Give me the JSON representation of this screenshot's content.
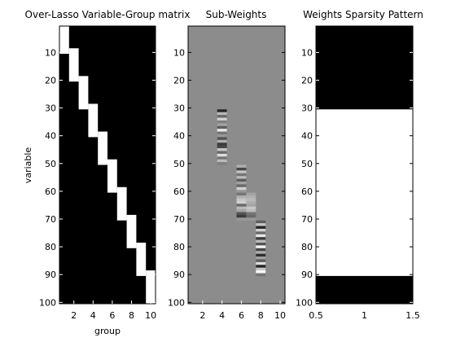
{
  "chart_data": [
    {
      "type": "heatmap",
      "title": "Over-Lasso Variable-Group matrix",
      "xlabel": "group",
      "ylabel": "variable",
      "xlim": [
        0.5,
        10.5
      ],
      "ylim": [
        100.5,
        0.5
      ],
      "x_ticks": [
        "2",
        "4",
        "6",
        "8",
        "10"
      ],
      "y_ticks": [
        "10",
        "20",
        "30",
        "40",
        "50",
        "60",
        "70",
        "80",
        "90",
        "100"
      ],
      "colormap": "gray",
      "description_of_cells": "binary: white where variable belongs to group",
      "groups": [
        {
          "group": 1,
          "var_start": 1,
          "var_end": 10
        },
        {
          "group": 2,
          "var_start": 11,
          "var_end": 20
        },
        {
          "group": 3,
          "var_start": 21,
          "var_end": 30
        },
        {
          "group": 4,
          "var_start": 31,
          "var_end": 40
        },
        {
          "group": 5,
          "var_start": 41,
          "var_end": 50
        },
        {
          "group": 6,
          "var_start": 51,
          "var_end": 60
        },
        {
          "group": 7,
          "var_start": 61,
          "var_end": 70
        },
        {
          "group": 8,
          "var_start": 71,
          "var_end": 80
        },
        {
          "group": 9,
          "var_start": 81,
          "var_end": 90
        },
        {
          "group": 10,
          "var_start": 91,
          "var_end": 100
        }
      ],
      "group_overlap_start_offset": -2,
      "background_color": "#000000",
      "member_color": "#ffffff"
    },
    {
      "type": "heatmap",
      "title": "Sub-Weights",
      "xlabel": "",
      "ylabel": "",
      "xlim": [
        0.5,
        10.5
      ],
      "ylim": [
        100.5,
        0.5
      ],
      "x_ticks": [
        "2",
        "4",
        "6",
        "8",
        "10"
      ],
      "y_ticks": [
        "10",
        "20",
        "30",
        "40",
        "50",
        "60",
        "70",
        "80",
        "90",
        "100"
      ],
      "colormap": "gray",
      "background_color": "#8c8c8c",
      "nonzero_columns": [
        {
          "group": 4,
          "var_start": 31,
          "var_end": 50,
          "values": [
            -0.9,
            0.4,
            -0.3,
            0.6,
            -0.1,
            0.2,
            -0.4,
            0.8,
            -0.2,
            0.1,
            -0.5,
            0.3,
            -0.7,
            -0.6,
            0.5,
            -0.3,
            0.7,
            -0.2,
            0.4,
            -0.1
          ]
        },
        {
          "group": 6,
          "var_start": 51,
          "var_end": 70,
          "values": [
            0.3,
            -0.6,
            0.5,
            -0.2,
            0.4,
            -0.4,
            0.2,
            -0.3,
            0.6,
            0.1,
            -0.2,
            0.3,
            0.5,
            0.6,
            -0.3,
            0.4,
            0.2,
            -0.5,
            -0.7,
            0.1
          ]
        },
        {
          "group": 7,
          "var_start": 61,
          "var_end": 70,
          "values": [
            0.2,
            0.3,
            0.4,
            0.3,
            0.2,
            0.5,
            0.4,
            -0.2,
            -0.3,
            0.1
          ]
        },
        {
          "group": 8,
          "var_start": 71,
          "var_end": 90,
          "values": [
            -0.4,
            0.5,
            -0.9,
            0.6,
            -0.3,
            0.8,
            -0.7,
            0.4,
            -0.5,
            0.9,
            -0.6,
            0.3,
            -0.8,
            0.2,
            -0.4,
            0.7,
            -0.9,
            0.5,
            0.95,
            -0.2
          ]
        }
      ]
    },
    {
      "type": "heatmap",
      "title": "Weights Sparsity Pattern",
      "xlabel": "",
      "ylabel": "",
      "xlim": [
        0.5,
        1.5
      ],
      "ylim": [
        100.5,
        0.5
      ],
      "x_ticks": [
        "0.5",
        "1",
        "1.5"
      ],
      "y_ticks": [
        "10",
        "20",
        "30",
        "40",
        "50",
        "60",
        "70",
        "80",
        "90",
        "100"
      ],
      "colormap": "gray",
      "background_color": "#000000",
      "nonzero_range": {
        "var_start": 31,
        "var_end": 90
      },
      "nonzero_color": "#ffffff"
    }
  ]
}
